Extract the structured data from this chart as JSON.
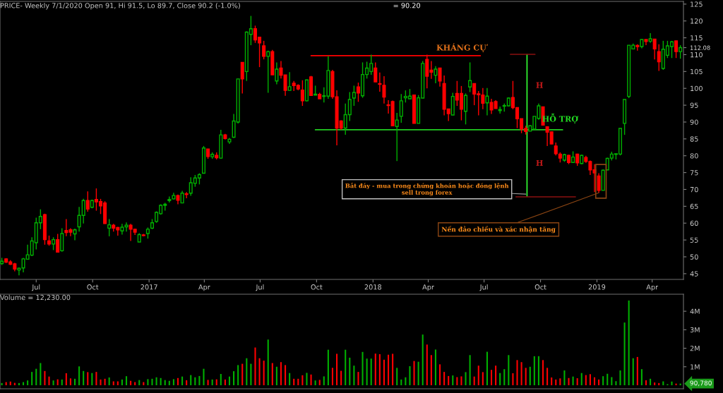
{
  "chart_data": [
    {
      "type": "candlestick",
      "title": "PRICE- Weekly 7/1/2020 Open 91, Hi 91.5, Lo 89.7, Close 90.2 (-1.0%)",
      "x": [
        "2016-05-06",
        "2016-05-13",
        "2016-05-20",
        "2016-05-27",
        "2016-06-03",
        "2016-06-10",
        "2016-06-17",
        "2016-06-24",
        "2016-07-01",
        "2016-07-08",
        "2016-07-15",
        "2016-07-22",
        "2016-07-29",
        "2016-08-05",
        "2016-08-12",
        "2016-08-19",
        "2016-08-26",
        "2016-09-02",
        "2016-09-09",
        "2016-09-16",
        "2016-09-23",
        "2016-09-30",
        "2016-10-07",
        "2016-10-14",
        "2016-10-21",
        "2016-10-28",
        "2016-11-04",
        "2016-11-11",
        "2016-11-18",
        "2016-11-25",
        "2016-12-02",
        "2016-12-09",
        "2016-12-16",
        "2016-12-23",
        "2016-12-30",
        "2017-01-06",
        "2017-01-13",
        "2017-01-20",
        "2017-01-27",
        "2017-02-03",
        "2017-02-10",
        "2017-02-17",
        "2017-02-24",
        "2017-03-03",
        "2017-03-10",
        "2017-03-17",
        "2017-03-24",
        "2017-03-31",
        "2017-04-07",
        "2017-04-14",
        "2017-04-21",
        "2017-04-28",
        "2017-05-05",
        "2017-05-12",
        "2017-05-19",
        "2017-05-26",
        "2017-06-02",
        "2017-06-09",
        "2017-06-16",
        "2017-06-23",
        "2017-06-30",
        "2017-07-07",
        "2017-07-14",
        "2017-07-21",
        "2017-07-28",
        "2017-08-04",
        "2017-08-11",
        "2017-08-18",
        "2017-08-25",
        "2017-09-01",
        "2017-09-08",
        "2017-09-15",
        "2017-09-22",
        "2017-09-29",
        "2017-10-06",
        "2017-10-13",
        "2017-10-20",
        "2017-10-27",
        "2017-11-03",
        "2017-11-10",
        "2017-11-17",
        "2017-11-24",
        "2017-12-01",
        "2017-12-08",
        "2017-12-15",
        "2017-12-22",
        "2017-12-29",
        "2018-01-05",
        "2018-01-12",
        "2018-01-19",
        "2018-01-26",
        "2018-02-02",
        "2018-02-09",
        "2018-02-16",
        "2018-02-23",
        "2018-03-02",
        "2018-03-09",
        "2018-03-16",
        "2018-03-23",
        "2018-03-30",
        "2018-04-06",
        "2018-04-13",
        "2018-04-20",
        "2018-04-27",
        "2018-05-04",
        "2018-05-11",
        "2018-05-18",
        "2018-05-25",
        "2018-06-01",
        "2018-06-08",
        "2018-06-15",
        "2018-06-22",
        "2018-06-29",
        "2018-07-06",
        "2018-07-13",
        "2018-07-20",
        "2018-07-27",
        "2018-08-03",
        "2018-08-10",
        "2018-08-17",
        "2018-08-24",
        "2018-08-31",
        "2018-09-07",
        "2018-09-14",
        "2018-09-21",
        "2018-09-28",
        "2018-10-05",
        "2018-10-12",
        "2018-10-19",
        "2018-10-26",
        "2018-11-02",
        "2018-11-09",
        "2018-11-16",
        "2018-11-23",
        "2018-11-30",
        "2018-12-07",
        "2018-12-14",
        "2018-12-21",
        "2018-12-28",
        "2019-01-04",
        "2019-01-11",
        "2019-01-18",
        "2019-01-25",
        "2019-02-01",
        "2019-02-08",
        "2019-02-15",
        "2019-02-22",
        "2019-03-01",
        "2019-03-08",
        "2019-03-15",
        "2019-03-22",
        "2019-03-29",
        "2019-04-05",
        "2019-04-12",
        "2019-04-19",
        "2019-04-26",
        "2019-05-03",
        "2019-05-10",
        "2019-05-17"
      ],
      "ohlc": [
        [
          48.0,
          49.7,
          47.6,
          48.7
        ],
        [
          49.4,
          49.6,
          48.2,
          48.4
        ],
        [
          48.5,
          49.0,
          47.6,
          47.8
        ],
        [
          47.9,
          48.2,
          45.7,
          46.4
        ],
        [
          46.1,
          46.8,
          44.5,
          46.6
        ],
        [
          46.7,
          49.7,
          45.4,
          49.4
        ],
        [
          49.3,
          53.6,
          49.2,
          50.6
        ],
        [
          50.5,
          55.8,
          50.2,
          54.7
        ],
        [
          54.2,
          61.6,
          52.2,
          60.1
        ],
        [
          60.1,
          64.1,
          58.2,
          62.0
        ],
        [
          62.5,
          62.8,
          53.6,
          55.1
        ],
        [
          54.7,
          56.3,
          53.3,
          53.8
        ],
        [
          53.8,
          55.8,
          52.0,
          55.1
        ],
        [
          55.1,
          56.8,
          51.3,
          51.4
        ],
        [
          51.8,
          58.5,
          51.5,
          56.9
        ],
        [
          57.8,
          61.2,
          56.1,
          57.2
        ],
        [
          58.0,
          58.5,
          56.1,
          57.3
        ],
        [
          56.8,
          58.4,
          54.9,
          58.0
        ],
        [
          58.9,
          64.8,
          57.5,
          62.3
        ],
        [
          62.3,
          67.2,
          59.9,
          66.7
        ],
        [
          66.7,
          69.4,
          63.4,
          64.2
        ],
        [
          64.7,
          67.0,
          64.4,
          66.7
        ],
        [
          67.0,
          70.3,
          63.7,
          66.3
        ],
        [
          66.4,
          67.2,
          62.7,
          65.1
        ],
        [
          66.0,
          66.5,
          59.8,
          59.9
        ],
        [
          58.5,
          61.2,
          56.1,
          59.5
        ],
        [
          59.4,
          59.8,
          57.5,
          58.5
        ],
        [
          58.7,
          58.9,
          56.3,
          58.0
        ],
        [
          57.7,
          59.8,
          56.6,
          58.8
        ],
        [
          58.9,
          60.2,
          57.5,
          59.4
        ],
        [
          59.4,
          59.8,
          54.7,
          58.2
        ],
        [
          58.2,
          58.3,
          56.5,
          57.3
        ],
        [
          54.4,
          57.0,
          54.4,
          56.6
        ],
        [
          56.5,
          56.8,
          56.1,
          56.3
        ],
        [
          56.9,
          58.7,
          55.4,
          58.2
        ],
        [
          58.5,
          61.2,
          58.2,
          60.1
        ],
        [
          60.5,
          63.5,
          60.1,
          63.2
        ],
        [
          62.8,
          65.6,
          62.5,
          65.3
        ],
        [
          65.3,
          66.0,
          63.7,
          65.6
        ],
        [
          66.7,
          67.9,
          66.1,
          67.0
        ],
        [
          67.2,
          69.0,
          67.0,
          68.2
        ],
        [
          68.2,
          68.5,
          65.6,
          66.8
        ],
        [
          66.0,
          69.6,
          65.9,
          68.9
        ],
        [
          68.7,
          69.2,
          67.4,
          68.5
        ],
        [
          68.9,
          73.6,
          68.1,
          72.0
        ],
        [
          71.8,
          74.3,
          70.8,
          73.4
        ],
        [
          73.4,
          74.8,
          71.5,
          74.4
        ],
        [
          74.8,
          82.9,
          74.8,
          82.3
        ],
        [
          82.0,
          82.0,
          79.1,
          79.8
        ],
        [
          79.7,
          81.0,
          79.1,
          80.4
        ],
        [
          80.1,
          81.0,
          78.9,
          79.4
        ],
        [
          79.3,
          87.7,
          79.1,
          86.2
        ],
        [
          86.2,
          86.5,
          84.8,
          85.1
        ],
        [
          84.1,
          85.3,
          83.5,
          84.9
        ],
        [
          85.5,
          92.4,
          85.3,
          90.3
        ],
        [
          90.0,
          102.8,
          89.6,
          102.8
        ],
        [
          107.7,
          107.7,
          98.5,
          102.8
        ],
        [
          105.0,
          116.9,
          102.2,
          116.7
        ],
        [
          116.0,
          121.5,
          112.8,
          117.7
        ],
        [
          117.7,
          118.6,
          113.5,
          114.4
        ],
        [
          115.2,
          115.2,
          106.3,
          113.5
        ],
        [
          112.6,
          114.1,
          108.6,
          109.5
        ],
        [
          109.5,
          111.2,
          98.7,
          110.9
        ],
        [
          110.9,
          111.4,
          104.0,
          104.0
        ],
        [
          102.2,
          107.7,
          101.2,
          105.7
        ],
        [
          106.0,
          108.1,
          102.9,
          103.9
        ],
        [
          104.0,
          104.0,
          97.8,
          99.4
        ],
        [
          99.4,
          104.8,
          99.3,
          100.5
        ],
        [
          101.5,
          102.2,
          99.2,
          100.8
        ],
        [
          100.9,
          101.2,
          99.4,
          99.8
        ],
        [
          99.5,
          102.4,
          94.8,
          96.3
        ],
        [
          96.3,
          102.6,
          96.1,
          102.5
        ],
        [
          103.4,
          103.7,
          97.8,
          97.9
        ],
        [
          98.0,
          100.8,
          98.0,
          98.3
        ],
        [
          98.2,
          98.7,
          96.9,
          96.9
        ],
        [
          97.6,
          100.3,
          95.8,
          97.8
        ],
        [
          97.7,
          109.5,
          96.9,
          105.3
        ],
        [
          105.0,
          105.5,
          96.9,
          97.5
        ],
        [
          97.5,
          99.4,
          83.1,
          88.2
        ],
        [
          90.3,
          90.5,
          87.7,
          88.2
        ],
        [
          88.2,
          95.5,
          86.2,
          92.2
        ],
        [
          92.2,
          98.9,
          90.3,
          96.7
        ],
        [
          97.1,
          100.8,
          94.8,
          98.8
        ],
        [
          100.4,
          101.7,
          96.0,
          98.6
        ],
        [
          97.8,
          107.7,
          97.2,
          104.1
        ],
        [
          104.1,
          107.9,
          102.9,
          106.0
        ],
        [
          105.0,
          110.0,
          104.0,
          107.4
        ],
        [
          106.0,
          107.7,
          101.9,
          101.9
        ],
        [
          101.4,
          104.7,
          99.0,
          101.2
        ],
        [
          100.9,
          103.6,
          95.5,
          97.4
        ],
        [
          95.1,
          96.5,
          92.5,
          94.9
        ],
        [
          96.1,
          96.4,
          88.9,
          88.9
        ],
        [
          88.7,
          92.7,
          78.4,
          90.6
        ],
        [
          91.7,
          98.3,
          89.8,
          96.3
        ],
        [
          97.2,
          99.4,
          95.8,
          97.6
        ],
        [
          96.9,
          99.8,
          96.9,
          97.7
        ],
        [
          98.0,
          98.0,
          89.6,
          89.6
        ],
        [
          89.6,
          98.0,
          89.6,
          97.2
        ],
        [
          97.1,
          108.1,
          97.1,
          107.4
        ],
        [
          108.6,
          110.0,
          100.0,
          103.6
        ],
        [
          105.4,
          108.1,
          102.8,
          104.8
        ],
        [
          103.9,
          106.6,
          101.5,
          105.7
        ],
        [
          106.0,
          106.0,
          100.5,
          102.2
        ],
        [
          101.4,
          103.8,
          92.0,
          93.8
        ],
        [
          93.9,
          93.9,
          90.3,
          92.5
        ],
        [
          92.1,
          98.7,
          92.1,
          97.6
        ],
        [
          98.5,
          102.2,
          94.8,
          96.5
        ],
        [
          98.5,
          100.7,
          90.5,
          93.8
        ],
        [
          93.2,
          98.5,
          89.3,
          97.9
        ],
        [
          100.4,
          107.7,
          98.9,
          102.3
        ],
        [
          101.4,
          101.4,
          95.0,
          98.3
        ],
        [
          98.4,
          99.2,
          92.0,
          98.1
        ],
        [
          98.0,
          100.1,
          93.8,
          95.6
        ],
        [
          95.7,
          100.1,
          92.0,
          97.7
        ],
        [
          95.8,
          96.9,
          92.4,
          93.6
        ],
        [
          96.1,
          96.5,
          94.0,
          94.0
        ],
        [
          93.4,
          94.6,
          92.5,
          93.7
        ],
        [
          94.7,
          95.5,
          93.1,
          94.9
        ],
        [
          94.8,
          97.3,
          94.6,
          97.1
        ],
        [
          97.3,
          102.2,
          93.8,
          94.3
        ],
        [
          94.3,
          94.3,
          88.2,
          91.0
        ],
        [
          91.0,
          91.0,
          86.7,
          87.9
        ],
        [
          88.1,
          88.9,
          86.3,
          87.2
        ],
        [
          87.3,
          89.1,
          87.3,
          88.9
        ],
        [
          87.9,
          91.7,
          87.7,
          91.7
        ],
        [
          91.1,
          95.5,
          90.7,
          94.8
        ],
        [
          94.5,
          94.6,
          89.1,
          89.1
        ],
        [
          88.6,
          88.6,
          82.9,
          87.0
        ],
        [
          87.1,
          87.1,
          83.4,
          83.5
        ],
        [
          82.9,
          83.9,
          80.1,
          80.6
        ],
        [
          80.5,
          81.0,
          78.0,
          79.3
        ],
        [
          78.7,
          80.6,
          78.2,
          80.3
        ],
        [
          80.1,
          80.3,
          77.5,
          78.0
        ],
        [
          78.0,
          81.3,
          77.9,
          79.6
        ],
        [
          80.5,
          80.6,
          77.0,
          77.9
        ],
        [
          77.7,
          80.3,
          77.5,
          80.1
        ],
        [
          79.5,
          80.0,
          77.9,
          78.3
        ],
        [
          78.3,
          78.6,
          74.3,
          75.8
        ],
        [
          75.8,
          77.5,
          69.2,
          74.9
        ],
        [
          74.0,
          74.8,
          69.0,
          69.7
        ],
        [
          69.7,
          75.9,
          69.7,
          75.7
        ],
        [
          75.8,
          79.4,
          75.7,
          79.2
        ],
        [
          79.3,
          81.2,
          78.6,
          80.5
        ],
        [
          80.4,
          80.6,
          78.9,
          80.6
        ],
        [
          80.5,
          88.1,
          80.1,
          88.1
        ],
        [
          89.6,
          96.7,
          86.2,
          96.7
        ],
        [
          97.6,
          112.8,
          97.1,
          112.8
        ],
        [
          111.7,
          113.3,
          111.6,
          112.8
        ],
        [
          112.7,
          113.1,
          111.2,
          112.4
        ],
        [
          112.4,
          114.6,
          111.9,
          114.5
        ],
        [
          114.5,
          114.5,
          112.8,
          113.9
        ],
        [
          114.0,
          116.4,
          113.5,
          114.7
        ],
        [
          114.6,
          114.6,
          108.6,
          111.7
        ],
        [
          110.9,
          113.1,
          105.2,
          107.9
        ],
        [
          105.9,
          114.1,
          105.5,
          111.6
        ],
        [
          109.8,
          114.1,
          109.0,
          112.6
        ],
        [
          112.4,
          114.1,
          109.0,
          113.8
        ],
        [
          114.1,
          114.1,
          109.0,
          110.9
        ],
        [
          110.9,
          112.8,
          108.8,
          112.08
        ]
      ],
      "colors": [
        "#00b000",
        "#ff0000",
        "#ff0000",
        "#ff0000",
        "#00b000",
        "#00b000",
        "#00b000",
        "#00b000",
        "#00b000",
        "#00b000",
        "#ff0000",
        "#ff0000",
        "#00b000",
        "#ff0000",
        "#00b000",
        "#ff0000",
        "#ff0000",
        "#00b000",
        "#00b000",
        "#00b000",
        "#ff0000",
        "#00b000",
        "#ff0000",
        "#ff0000",
        "#ff0000",
        "#00b000",
        "#ff0000",
        "#ff0000",
        "#00b000",
        "#00b000",
        "#ff0000",
        "#ff0000",
        "#00b000",
        "#ff0000",
        "#00b000",
        "#00b000",
        "#00b000",
        "#00b000",
        "#00b000",
        "#00b000",
        "#00b000",
        "#ff0000",
        "#00b000",
        "#ff0000",
        "#00b000",
        "#00b000",
        "#00b000",
        "#00b000",
        "#ff0000",
        "#00b000",
        "#ff0000",
        "#00b000",
        "#ff0000",
        "#00b000",
        "#00b000",
        "#00b000",
        "#ff0000",
        "#00b000",
        "#00b000",
        "#ff0000",
        "#ff0000",
        "#ff0000",
        "#00b000",
        "#ff0000",
        "#00b000",
        "#ff0000",
        "#ff0000",
        "#00b000",
        "#ff0000",
        "#ff0000",
        "#ff0000",
        "#00b000",
        "#ff0000",
        "#00b000",
        "#ff0000",
        "#00b000",
        "#00b000",
        "#ff0000",
        "#ff0000",
        "#ff0000",
        "#00b000",
        "#00b000",
        "#00b000",
        "#ff0000",
        "#00b000",
        "#00b000",
        "#00b000",
        "#ff0000",
        "#ff0000",
        "#ff0000",
        "#ff0000",
        "#ff0000",
        "#00b000",
        "#00b000",
        "#00b000",
        "#00b000",
        "#ff0000",
        "#00b000",
        "#00b000",
        "#ff0000",
        "#ff0000",
        "#00b000",
        "#ff0000",
        "#ff0000",
        "#ff0000",
        "#00b000",
        "#ff0000",
        "#ff0000",
        "#00b000",
        "#00b000",
        "#ff0000",
        "#ff0000",
        "#ff0000",
        "#00b000",
        "#ff0000",
        "#ff0000",
        "#00b000",
        "#00b000",
        "#00b000",
        "#ff0000",
        "#ff0000",
        "#ff0000",
        "#ff0000",
        "#00b000",
        "#00b000",
        "#00b000",
        "#ff0000",
        "#ff0000",
        "#ff0000",
        "#ff0000",
        "#ff0000",
        "#00b000",
        "#ff0000",
        "#00b000",
        "#ff0000",
        "#00b000",
        "#ff0000",
        "#ff0000",
        "#ff0000",
        "#ff0000",
        "#00b000",
        "#00b000",
        "#00b000",
        "#00b000",
        "#00b000",
        "#00b000",
        "#00b000",
        "#00b000",
        "#ff0000",
        "#00b000",
        "#ff0000",
        "#00b000",
        "#ff0000",
        "#ff0000",
        "#00b000",
        "#00b000",
        "#00b000",
        "#ff0000",
        "#00b000"
      ],
      "series": [
        {
          "type": "line",
          "color": "#ff0000",
          "x": [
            "2017-09-22",
            "2018-06-25"
          ],
          "values": [
            109.7,
            109.7
          ]
        },
        {
          "type": "line",
          "color": "#22cc22",
          "x": [
            "2017-09-29",
            "2018-11-06"
          ],
          "values": [
            87.7,
            87.7
          ]
        },
        {
          "type": "line",
          "color": "#33ff33",
          "x": [
            "2018-09-09",
            "2018-09-09"
          ],
          "values": [
            110.0,
            68.0
          ]
        },
        {
          "type": "line",
          "color": "#8b1010",
          "x": [
            "2018-08-13",
            "2018-09-22"
          ],
          "values": [
            110.1,
            110.1
          ]
        },
        {
          "type": "line",
          "color": "#8b1010",
          "x": [
            "2018-08-22",
            "2018-11-27"
          ],
          "values": [
            67.8,
            67.8
          ]
        }
      ],
      "annotations": [
        "= 90.20",
        {
          "text": "KHÁNG CỰ",
          "x": "2018-05-25",
          "y": 109.7
        },
        {
          "text": "HỖ TRỢ",
          "x": "2018-11-02",
          "y": 87.7
        },
        "H",
        "H",
        {
          "text": "Bắt đáy - mua trong chứng khoán hoặc đóng lệnh\nsell trong forex",
          "x": "2018-09-07",
          "y": 68.6
        },
        {
          "text": "Nến đảo chiều và xác nhận tăng",
          "x": "2019-01-04",
          "y": 69.0
        }
      ],
      "xlim": [
        "2016-05-03",
        "2019-05-22"
      ],
      "ylim": [
        43.3,
        125.8
      ],
      "xticks": [
        {
          "value": "2016-07-01",
          "label": "Jul"
        },
        {
          "value": "2016-10-01",
          "label": "Oct"
        },
        {
          "value": "2017-01-01",
          "label": "2017"
        },
        {
          "value": "2017-04-01",
          "label": "Apr"
        },
        {
          "value": "2017-07-01",
          "label": "Jul"
        },
        {
          "value": "2017-10-01",
          "label": "Oct"
        },
        {
          "value": "2018-01-01",
          "label": "2018"
        },
        {
          "value": "2018-04-01",
          "label": "Apr"
        },
        {
          "value": "2018-07-01",
          "label": "Jul"
        },
        {
          "value": "2018-10-01",
          "label": "Oct"
        },
        {
          "value": "2019-01-01",
          "label": "2019"
        },
        {
          "value": "2019-04-01",
          "label": "Apr"
        }
      ],
      "yticks": [
        45,
        50,
        55,
        60,
        65,
        70,
        75,
        80,
        85,
        90,
        95,
        100,
        105,
        110,
        {
          "value": 112.08,
          "label": "112.08"
        },
        115,
        120,
        125
      ]
    },
    {
      "type": "bar",
      "title": "Volume = 12,230.00",
      "x": [
        "2016-05-06",
        "2016-05-13",
        "2016-05-20",
        "2016-05-27",
        "2016-06-03",
        "2016-06-10",
        "2016-06-17",
        "2016-06-24",
        "2016-07-01",
        "2016-07-08",
        "2016-07-15",
        "2016-07-22",
        "2016-07-29",
        "2016-08-05",
        "2016-08-12",
        "2016-08-19",
        "2016-08-26",
        "2016-09-02",
        "2016-09-09",
        "2016-09-16",
        "2016-09-23",
        "2016-09-30",
        "2016-10-07",
        "2016-10-14",
        "2016-10-21",
        "2016-10-28",
        "2016-11-04",
        "2016-11-11",
        "2016-11-18",
        "2016-11-25",
        "2016-12-02",
        "2016-12-09",
        "2016-12-16",
        "2016-12-23",
        "2016-12-30",
        "2017-01-06",
        "2017-01-13",
        "2017-01-20",
        "2017-01-27",
        "2017-02-03",
        "2017-02-10",
        "2017-02-17",
        "2017-02-24",
        "2017-03-03",
        "2017-03-10",
        "2017-03-17",
        "2017-03-24",
        "2017-03-31",
        "2017-04-07",
        "2017-04-14",
        "2017-04-21",
        "2017-04-28",
        "2017-05-05",
        "2017-05-12",
        "2017-05-19",
        "2017-05-26",
        "2017-06-02",
        "2017-06-09",
        "2017-06-16",
        "2017-06-23",
        "2017-06-30",
        "2017-07-07",
        "2017-07-14",
        "2017-07-21",
        "2017-07-28",
        "2017-08-04",
        "2017-08-11",
        "2017-08-18",
        "2017-08-25",
        "2017-09-01",
        "2017-09-08",
        "2017-09-15",
        "2017-09-22",
        "2017-09-29",
        "2017-10-06",
        "2017-10-13",
        "2017-10-20",
        "2017-10-27",
        "2017-11-03",
        "2017-11-10",
        "2017-11-17",
        "2017-11-24",
        "2017-12-01",
        "2017-12-08",
        "2017-12-15",
        "2017-12-22",
        "2017-12-29",
        "2018-01-05",
        "2018-01-12",
        "2018-01-19",
        "2018-01-26",
        "2018-02-02",
        "2018-02-09",
        "2018-02-16",
        "2018-02-23",
        "2018-03-02",
        "2018-03-09",
        "2018-03-16",
        "2018-03-23",
        "2018-03-30",
        "2018-04-06",
        "2018-04-13",
        "2018-04-20",
        "2018-04-27",
        "2018-05-04",
        "2018-05-11",
        "2018-05-18",
        "2018-05-25",
        "2018-06-01",
        "2018-06-08",
        "2018-06-15",
        "2018-06-22",
        "2018-06-29",
        "2018-07-06",
        "2018-07-13",
        "2018-07-20",
        "2018-07-27",
        "2018-08-03",
        "2018-08-10",
        "2018-08-17",
        "2018-08-24",
        "2018-08-31",
        "2018-09-07",
        "2018-09-14",
        "2018-09-21",
        "2018-09-28",
        "2018-10-05",
        "2018-10-12",
        "2018-10-19",
        "2018-10-26",
        "2018-11-02",
        "2018-11-09",
        "2018-11-16",
        "2018-11-23",
        "2018-11-30",
        "2018-12-07",
        "2018-12-14",
        "2018-12-21",
        "2018-12-28",
        "2019-01-04",
        "2019-01-11",
        "2019-01-18",
        "2019-01-25",
        "2019-02-01",
        "2019-02-08",
        "2019-02-15",
        "2019-02-22",
        "2019-03-01",
        "2019-03-08",
        "2019-03-15",
        "2019-03-22",
        "2019-03-29",
        "2019-04-05",
        "2019-04-12",
        "2019-04-19",
        "2019-04-26",
        "2019-05-03",
        "2019-05-10",
        "2019-05-17"
      ],
      "values": [
        0.12,
        0.17,
        0.2,
        0.13,
        0.12,
        0.17,
        0.26,
        0.72,
        0.89,
        1.2,
        0.77,
        0.47,
        0.26,
        0.32,
        0.31,
        0.65,
        0.37,
        0.35,
        1.02,
        0.77,
        0.71,
        0.66,
        0.72,
        0.31,
        0.35,
        0.42,
        0.21,
        0.21,
        0.31,
        0.49,
        0.24,
        0.17,
        0.28,
        0.17,
        0.33,
        0.35,
        0.43,
        0.39,
        0.28,
        0.24,
        0.33,
        0.39,
        0.47,
        0.27,
        0.55,
        0.43,
        0.5,
        0.89,
        0.29,
        0.31,
        0.32,
        0.61,
        0.31,
        0.47,
        0.76,
        1.09,
        1.16,
        1.46,
        1.16,
        2.04,
        1.46,
        1.33,
        2.47,
        1.2,
        1.0,
        1.25,
        1.09,
        0.66,
        0.35,
        0.35,
        0.54,
        0.67,
        0.58,
        0.26,
        0.29,
        0.48,
        1.92,
        0.94,
        1.7,
        0.78,
        1.92,
        1.49,
        1.06,
        0.72,
        1.8,
        1.44,
        1.44,
        1.71,
        1.68,
        1.38,
        1.65,
        1.7,
        0.94,
        0.31,
        0.43,
        1.03,
        1.31,
        1.27,
        2.74,
        2.2,
        1.63,
        1.93,
        1.13,
        0.72,
        0.5,
        0.53,
        0.44,
        0.48,
        0.71,
        1.63,
        0.47,
        1.06,
        0.71,
        1.81,
        0.83,
        1.06,
        0.66,
        0.87,
        1.63,
        0.65,
        1.36,
        1.25,
        0.94,
        1.0,
        1.57,
        1.57,
        1.36,
        0.94,
        0.42,
        0.31,
        0.37,
        0.8,
        0.39,
        0.47,
        0.38,
        0.66,
        0.55,
        0.6,
        0.43,
        0.31,
        0.49,
        0.62,
        0.44,
        0.22,
        0.8,
        3.39,
        4.58,
        1.46,
        1.53,
        0.87,
        0.27,
        0.35,
        0.15,
        0.12,
        0.21,
        0.06,
        0.2,
        0.09,
        0.09078
      ],
      "colors": [
        "#00b000",
        "#ff0000",
        "#ff0000",
        "#ff0000",
        "#00b000",
        "#00b000",
        "#00b000",
        "#00b000",
        "#00b000",
        "#00b000",
        "#ff0000",
        "#ff0000",
        "#00b000",
        "#ff0000",
        "#00b000",
        "#ff0000",
        "#ff0000",
        "#00b000",
        "#00b000",
        "#00b000",
        "#ff0000",
        "#00b000",
        "#ff0000",
        "#ff0000",
        "#ff0000",
        "#00b000",
        "#ff0000",
        "#ff0000",
        "#00b000",
        "#00b000",
        "#ff0000",
        "#ff0000",
        "#00b000",
        "#ff0000",
        "#00b000",
        "#00b000",
        "#00b000",
        "#00b000",
        "#00b000",
        "#00b000",
        "#00b000",
        "#ff0000",
        "#00b000",
        "#ff0000",
        "#00b000",
        "#00b000",
        "#00b000",
        "#00b000",
        "#ff0000",
        "#00b000",
        "#ff0000",
        "#00b000",
        "#ff0000",
        "#00b000",
        "#00b000",
        "#00b000",
        "#ff0000",
        "#00b000",
        "#00b000",
        "#ff0000",
        "#ff0000",
        "#ff0000",
        "#00b000",
        "#ff0000",
        "#00b000",
        "#ff0000",
        "#ff0000",
        "#00b000",
        "#ff0000",
        "#ff0000",
        "#ff0000",
        "#00b000",
        "#ff0000",
        "#00b000",
        "#ff0000",
        "#00b000",
        "#00b000",
        "#ff0000",
        "#ff0000",
        "#ff0000",
        "#00b000",
        "#00b000",
        "#00b000",
        "#ff0000",
        "#00b000",
        "#00b000",
        "#00b000",
        "#ff0000",
        "#ff0000",
        "#ff0000",
        "#ff0000",
        "#ff0000",
        "#00b000",
        "#00b000",
        "#00b000",
        "#00b000",
        "#ff0000",
        "#00b000",
        "#00b000",
        "#ff0000",
        "#ff0000",
        "#00b000",
        "#ff0000",
        "#ff0000",
        "#ff0000",
        "#00b000",
        "#ff0000",
        "#ff0000",
        "#00b000",
        "#00b000",
        "#ff0000",
        "#ff0000",
        "#ff0000",
        "#00b000",
        "#ff0000",
        "#ff0000",
        "#00b000",
        "#00b000",
        "#00b000",
        "#ff0000",
        "#ff0000",
        "#ff0000",
        "#ff0000",
        "#00b000",
        "#00b000",
        "#00b000",
        "#ff0000",
        "#ff0000",
        "#ff0000",
        "#ff0000",
        "#ff0000",
        "#00b000",
        "#ff0000",
        "#00b000",
        "#ff0000",
        "#00b000",
        "#ff0000",
        "#ff0000",
        "#ff0000",
        "#ff0000",
        "#00b000",
        "#00b000",
        "#00b000",
        "#00b000",
        "#00b000",
        "#00b000",
        "#00b000",
        "#00b000",
        "#ff0000",
        "#00b000",
        "#ff0000",
        "#00b000",
        "#ff0000",
        "#ff0000",
        "#00b000",
        "#00b000",
        "#00b000",
        "#ff0000",
        "#00b000"
      ],
      "annotations": [
        {
          "text": "90,780",
          "x": "2019-05-17",
          "y": 0.09078
        }
      ],
      "xlim": [
        "2016-05-03",
        "2019-05-22"
      ],
      "ylim": [
        -0.19,
        4.92
      ],
      "yticks": [
        {
          "value": 1,
          "label": "1M"
        },
        {
          "value": 2,
          "label": "2M"
        },
        {
          "value": 3,
          "label": "3M"
        },
        {
          "value": 4,
          "label": "4M"
        }
      ],
      "tick_labels": "y"
    }
  ]
}
